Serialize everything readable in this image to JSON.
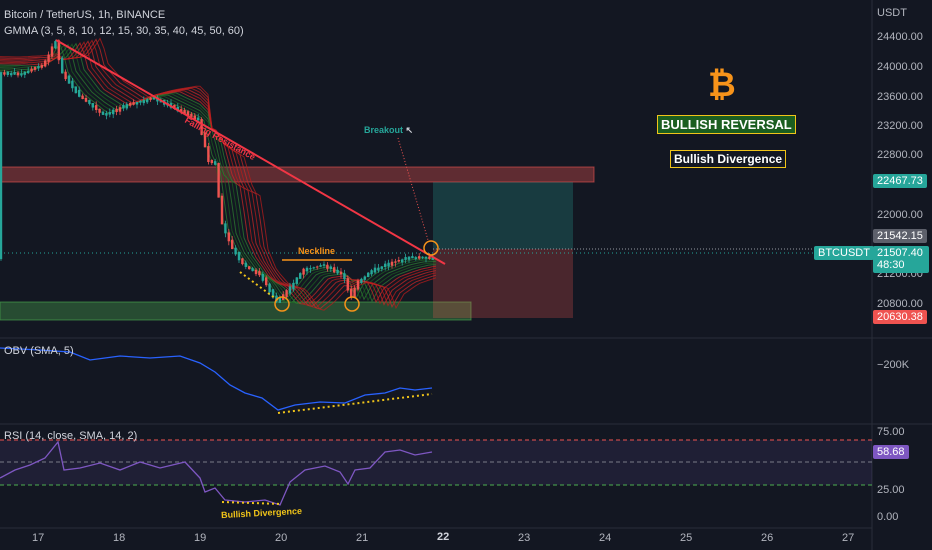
{
  "header": {
    "symbol_line": "Bitcoin / TetherUS, 1h, BINANCE",
    "gmma_line": "GMMA (3, 5, 8, 10, 12, 15, 30, 35, 40, 45, 50, 60)"
  },
  "price_axis": {
    "currency": "USDT",
    "ticks": [
      "24400.00",
      "24000.00",
      "23600.00",
      "23200.00",
      "22800.00",
      "22000.00",
      "21200.00",
      "20800.00"
    ],
    "target_label": "22467.73",
    "entry_label": "21542.15",
    "symbol_tag": "BTCUSDT",
    "last_price": "21507.40",
    "countdown": "48:30",
    "stop_label": "20630.38"
  },
  "annotations": {
    "falling_resistance": "Falling Resistance",
    "breakout": "Breakout",
    "neckline": "Neckline",
    "bullish_reversal": "BULLISH REVERSAL",
    "bullish_divergence_box": "Bullish Divergence",
    "bullish_divergence_rsi": "Bullish Divergence",
    "bitcoin_symbol": "₿"
  },
  "obv": {
    "label": "OBV (SMA, 5)",
    "axis_value": "−200K"
  },
  "rsi": {
    "label": "RSI (14, close, SMA, 14, 2)",
    "ticks": [
      "75.00",
      "25.00",
      "0.00"
    ],
    "current": "58.68"
  },
  "time_axis": [
    "17",
    "18",
    "19",
    "20",
    "21",
    "22",
    "23",
    "24",
    "25",
    "26",
    "27"
  ],
  "colors": {
    "background": "#131722",
    "up": "#26a69a",
    "down": "#ef5350",
    "accent_yellow": "#f0c419",
    "bitcoin_orange": "#f7931a",
    "rsi_line": "#7e57c2",
    "obv_line": "#2962ff",
    "resistance": "#f23645"
  }
}
